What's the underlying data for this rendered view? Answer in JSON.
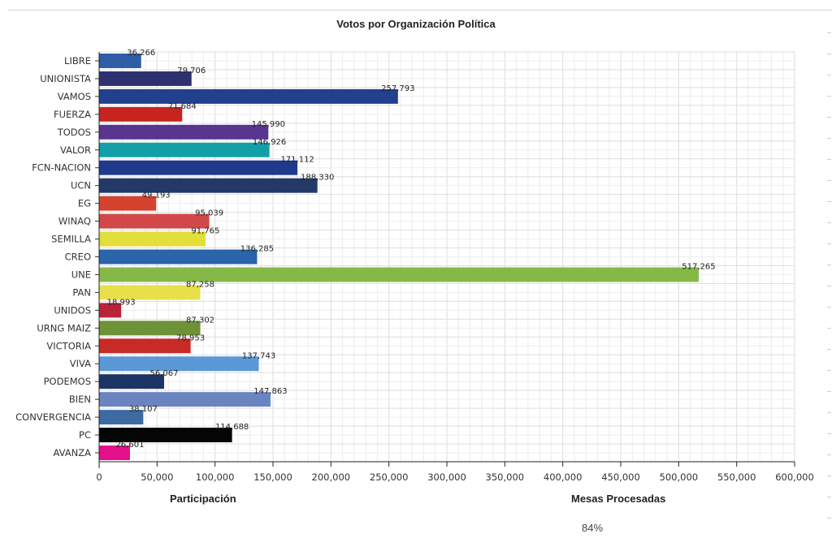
{
  "chart_data": {
    "type": "bar",
    "orientation": "horizontal",
    "title": "Votos por Organización Política",
    "xlabel": "",
    "ylabel": "",
    "xlim": [
      0,
      600000
    ],
    "x_ticks": [
      0,
      50000,
      100000,
      150000,
      200000,
      250000,
      300000,
      350000,
      400000,
      450000,
      500000,
      550000,
      600000
    ],
    "x_tick_labels": [
      "0",
      "50,000",
      "100,000",
      "150,000",
      "200,000",
      "250,000",
      "300,000",
      "350,000",
      "400,000",
      "450,000",
      "500,000",
      "550,000",
      "600,000"
    ],
    "grid": true,
    "legend": "none",
    "categories": [
      "LIBRE",
      "UNIONISTA",
      "VAMOS",
      "FUERZA",
      "TODOS",
      "VALOR",
      "FCN-NACION",
      "UCN",
      "EG",
      "WINAQ",
      "SEMILLA",
      "CREO",
      "UNE",
      "PAN",
      "UNIDOS",
      "URNG MAIZ",
      "VICTORIA",
      "VIVA",
      "PODEMOS",
      "BIEN",
      "CONVERGENCIA",
      "PC",
      "AVANZA"
    ],
    "values": [
      36266,
      79706,
      257793,
      71684,
      145990,
      146926,
      171112,
      188330,
      49193,
      95039,
      91765,
      136285,
      517265,
      87258,
      18993,
      87302,
      78953,
      137743,
      56067,
      147863,
      38107,
      114688,
      26601
    ],
    "value_labels": [
      "36,266",
      "79,706",
      "257,793",
      "71,684",
      "145,990",
      "146,926",
      "171,112",
      "188,330",
      "49,193",
      "95,039",
      "91,765",
      "136,285",
      "517,265",
      "87,258",
      "18,993",
      "87,302",
      "78,953",
      "137,743",
      "56,067",
      "147,863",
      "38,107",
      "114,688",
      "26,601"
    ],
    "colors": [
      "#2f5ea6",
      "#2e3170",
      "#22408e",
      "#c8241f",
      "#5a3590",
      "#12a0a8",
      "#1f3a8c",
      "#233a68",
      "#d4432e",
      "#d24848",
      "#e2de3a",
      "#2a64a9",
      "#86b848",
      "#e8e04a",
      "#b8233a",
      "#6e9238",
      "#c82a26",
      "#5a98d8",
      "#1c3564",
      "#6a84c0",
      "#3d6aa0",
      "#050505",
      "#e4108a"
    ]
  },
  "footer": {
    "participation_label": "Participación",
    "processed_label": "Mesas Procesadas",
    "processed_value": "84%"
  }
}
